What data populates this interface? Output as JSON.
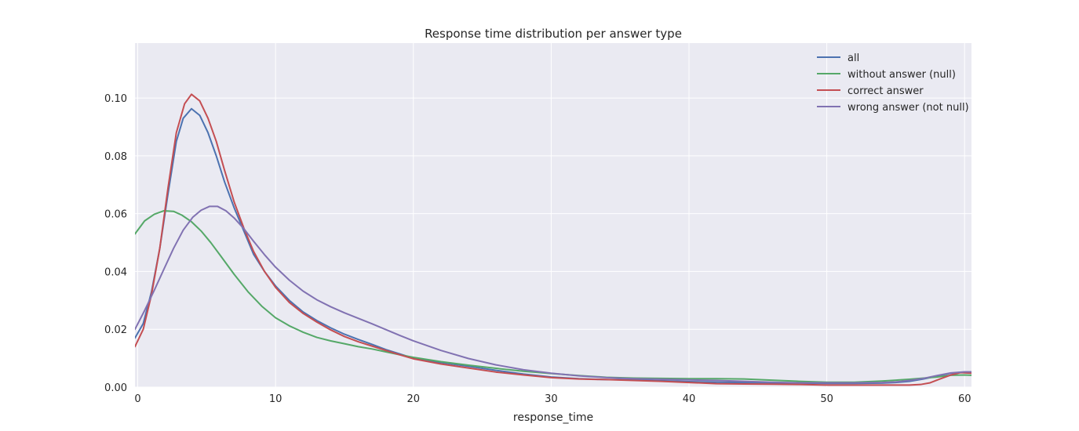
{
  "chart_data": {
    "type": "line",
    "title": "Response time distribution per answer type",
    "xlabel": "response_time",
    "ylabel": "",
    "xlim": [
      -0.2,
      60.5
    ],
    "ylim": [
      0,
      0.119
    ],
    "x_ticks": [
      0,
      10,
      20,
      30,
      40,
      50,
      60
    ],
    "x_tick_labels": [
      "0",
      "10",
      "20",
      "30",
      "40",
      "50",
      "60"
    ],
    "y_ticks": [
      0.0,
      0.02,
      0.04,
      0.06,
      0.08,
      0.1
    ],
    "y_tick_labels": [
      "0.00",
      "0.02",
      "0.04",
      "0.06",
      "0.08",
      "0.10"
    ],
    "grid": true,
    "legend_position": "top-right",
    "series": [
      {
        "name": "all",
        "color": "#4c72b0",
        "points": [
          [
            -0.2,
            0.017
          ],
          [
            0.4,
            0.022
          ],
          [
            1.0,
            0.033
          ],
          [
            1.6,
            0.048
          ],
          [
            2.2,
            0.067
          ],
          [
            2.8,
            0.085
          ],
          [
            3.3,
            0.093
          ],
          [
            3.9,
            0.0963
          ],
          [
            4.5,
            0.094
          ],
          [
            5.1,
            0.088
          ],
          [
            5.7,
            0.08
          ],
          [
            6.3,
            0.071
          ],
          [
            7.0,
            0.062
          ],
          [
            7.7,
            0.054
          ],
          [
            8.4,
            0.046
          ],
          [
            9.2,
            0.04
          ],
          [
            10.0,
            0.035
          ],
          [
            11.0,
            0.03
          ],
          [
            12.0,
            0.026
          ],
          [
            13.0,
            0.023
          ],
          [
            14.0,
            0.0205
          ],
          [
            15.0,
            0.0183
          ],
          [
            16.0,
            0.0165
          ],
          [
            17.0,
            0.0148
          ],
          [
            18.0,
            0.013
          ],
          [
            19.0,
            0.0115
          ],
          [
            20.0,
            0.01
          ],
          [
            22.0,
            0.0085
          ],
          [
            24.0,
            0.0072
          ],
          [
            26.0,
            0.0058
          ],
          [
            28.0,
            0.0045
          ],
          [
            30.0,
            0.0035
          ],
          [
            32.0,
            0.0029
          ],
          [
            34.0,
            0.0026
          ],
          [
            36.0,
            0.0025
          ],
          [
            38.0,
            0.0022
          ],
          [
            40.0,
            0.0019
          ],
          [
            42.0,
            0.0017
          ],
          [
            44.0,
            0.0016
          ],
          [
            46.0,
            0.0015
          ],
          [
            48.0,
            0.0014
          ],
          [
            50.0,
            0.0013
          ],
          [
            52.0,
            0.0013
          ],
          [
            54.0,
            0.0014
          ],
          [
            55.0,
            0.0016
          ],
          [
            56.0,
            0.002
          ],
          [
            57.0,
            0.0028
          ],
          [
            58.0,
            0.0038
          ],
          [
            59.0,
            0.0048
          ],
          [
            60.0,
            0.0052
          ],
          [
            60.5,
            0.0052
          ]
        ]
      },
      {
        "name": "without answer (null)",
        "color": "#55a868",
        "points": [
          [
            -0.2,
            0.053
          ],
          [
            0.5,
            0.0575
          ],
          [
            1.2,
            0.0598
          ],
          [
            1.9,
            0.061
          ],
          [
            2.6,
            0.0608
          ],
          [
            3.2,
            0.0595
          ],
          [
            3.9,
            0.0572
          ],
          [
            4.6,
            0.054
          ],
          [
            5.3,
            0.05
          ],
          [
            6.0,
            0.0455
          ],
          [
            7.0,
            0.039
          ],
          [
            8.0,
            0.033
          ],
          [
            9.0,
            0.028
          ],
          [
            10.0,
            0.024
          ],
          [
            11.0,
            0.0212
          ],
          [
            12.0,
            0.019
          ],
          [
            13.0,
            0.0172
          ],
          [
            14.0,
            0.016
          ],
          [
            15.0,
            0.015
          ],
          [
            16.0,
            0.014
          ],
          [
            17.0,
            0.0132
          ],
          [
            18.0,
            0.0122
          ],
          [
            19.0,
            0.0112
          ],
          [
            20.0,
            0.0103
          ],
          [
            22.0,
            0.0088
          ],
          [
            24.0,
            0.0076
          ],
          [
            26.0,
            0.0065
          ],
          [
            28.0,
            0.0055
          ],
          [
            30.0,
            0.0047
          ],
          [
            32.0,
            0.004
          ],
          [
            34.0,
            0.0034
          ],
          [
            36.0,
            0.0031
          ],
          [
            38.0,
            0.003
          ],
          [
            40.0,
            0.0029
          ],
          [
            42.0,
            0.0029
          ],
          [
            44.0,
            0.0028
          ],
          [
            46.0,
            0.0024
          ],
          [
            48.0,
            0.002
          ],
          [
            50.0,
            0.0017
          ],
          [
            52.0,
            0.0017
          ],
          [
            54.0,
            0.0021
          ],
          [
            56.0,
            0.0027
          ],
          [
            58.0,
            0.0035
          ],
          [
            59.0,
            0.0041
          ],
          [
            60.0,
            0.0042
          ],
          [
            60.5,
            0.0041
          ]
        ]
      },
      {
        "name": "correct answer",
        "color": "#c44e52",
        "points": [
          [
            -0.2,
            0.014
          ],
          [
            0.4,
            0.02
          ],
          [
            1.0,
            0.032
          ],
          [
            1.6,
            0.048
          ],
          [
            2.2,
            0.069
          ],
          [
            2.8,
            0.088
          ],
          [
            3.4,
            0.098
          ],
          [
            3.9,
            0.1013
          ],
          [
            4.5,
            0.099
          ],
          [
            5.1,
            0.093
          ],
          [
            5.7,
            0.085
          ],
          [
            6.3,
            0.075
          ],
          [
            7.0,
            0.064
          ],
          [
            7.7,
            0.055
          ],
          [
            8.4,
            0.047
          ],
          [
            9.2,
            0.04
          ],
          [
            10.0,
            0.0345
          ],
          [
            11.0,
            0.0293
          ],
          [
            12.0,
            0.0255
          ],
          [
            13.0,
            0.0225
          ],
          [
            14.0,
            0.0198
          ],
          [
            15.0,
            0.0175
          ],
          [
            16.0,
            0.0157
          ],
          [
            17.0,
            0.0142
          ],
          [
            18.0,
            0.0127
          ],
          [
            19.0,
            0.0112
          ],
          [
            20.0,
            0.0098
          ],
          [
            22.0,
            0.008
          ],
          [
            24.0,
            0.0066
          ],
          [
            26.0,
            0.0052
          ],
          [
            28.0,
            0.0042
          ],
          [
            30.0,
            0.0033
          ],
          [
            32.0,
            0.0028
          ],
          [
            34.0,
            0.0026
          ],
          [
            36.0,
            0.0023
          ],
          [
            38.0,
            0.002
          ],
          [
            40.0,
            0.0016
          ],
          [
            42.0,
            0.0012
          ],
          [
            44.0,
            0.0011
          ],
          [
            46.0,
            0.001
          ],
          [
            48.0,
            0.0009
          ],
          [
            50.0,
            0.0007
          ],
          [
            52.0,
            0.0007
          ],
          [
            54.0,
            0.0007
          ],
          [
            56.0,
            0.0007
          ],
          [
            56.8,
            0.0009
          ],
          [
            57.5,
            0.0015
          ],
          [
            58.2,
            0.0028
          ],
          [
            59.0,
            0.0042
          ],
          [
            59.7,
            0.005
          ],
          [
            60.5,
            0.0048
          ]
        ]
      },
      {
        "name": "wrong answer (not null)",
        "color": "#8172b2",
        "points": [
          [
            -0.2,
            0.02
          ],
          [
            0.5,
            0.0265
          ],
          [
            1.2,
            0.0335
          ],
          [
            1.9,
            0.0408
          ],
          [
            2.6,
            0.048
          ],
          [
            3.3,
            0.0543
          ],
          [
            4.0,
            0.0588
          ],
          [
            4.6,
            0.0612
          ],
          [
            5.2,
            0.0625
          ],
          [
            5.8,
            0.0625
          ],
          [
            6.4,
            0.061
          ],
          [
            7.0,
            0.0585
          ],
          [
            7.7,
            0.0548
          ],
          [
            8.4,
            0.0505
          ],
          [
            9.2,
            0.0458
          ],
          [
            10.0,
            0.0415
          ],
          [
            11.0,
            0.037
          ],
          [
            12.0,
            0.0332
          ],
          [
            13.0,
            0.0302
          ],
          [
            14.0,
            0.0278
          ],
          [
            15.0,
            0.0257
          ],
          [
            16.0,
            0.0238
          ],
          [
            17.0,
            0.0219
          ],
          [
            18.0,
            0.0199
          ],
          [
            19.0,
            0.0179
          ],
          [
            20.0,
            0.016
          ],
          [
            22.0,
            0.0127
          ],
          [
            24.0,
            0.0099
          ],
          [
            26.0,
            0.0077
          ],
          [
            28.0,
            0.006
          ],
          [
            30.0,
            0.0048
          ],
          [
            32.0,
            0.0039
          ],
          [
            34.0,
            0.0033
          ],
          [
            36.0,
            0.0029
          ],
          [
            38.0,
            0.0027
          ],
          [
            40.0,
            0.0025
          ],
          [
            42.0,
            0.0023
          ],
          [
            44.0,
            0.002
          ],
          [
            46.0,
            0.0017
          ],
          [
            48.0,
            0.0015
          ],
          [
            50.0,
            0.0015
          ],
          [
            52.0,
            0.0015
          ],
          [
            54.0,
            0.0016
          ],
          [
            55.0,
            0.0018
          ],
          [
            56.0,
            0.0023
          ],
          [
            57.0,
            0.003
          ],
          [
            58.0,
            0.004
          ],
          [
            59.0,
            0.0049
          ],
          [
            60.0,
            0.0053
          ],
          [
            60.5,
            0.0053
          ]
        ]
      }
    ]
  }
}
